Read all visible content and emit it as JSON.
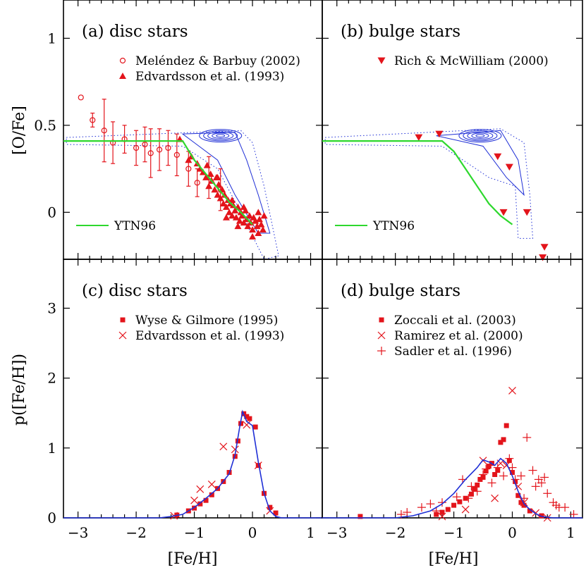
{
  "colors": {
    "data": "#e3141b",
    "contour": "#1f2fd6",
    "model": "#2ed82e",
    "axis": "#000000"
  },
  "axes": {
    "xlabel": "[Fe/H]",
    "top_ylabel": "[O/Fe]",
    "bottom_ylabel": "p([Fe/H])",
    "x_ticks": [
      "−3",
      "−2",
      "−1",
      "0",
      "1"
    ],
    "top_y_ticks": [
      "1",
      "0.5",
      "0"
    ],
    "bottom_y_ticks": [
      "3",
      "2",
      "1",
      "0"
    ]
  },
  "chart_data": [
    {
      "id": "a",
      "type": "scatter",
      "title": "(a) disc stars",
      "xlim": [
        -3.25,
        1.2
      ],
      "ylim": [
        -0.27,
        1.22
      ],
      "series": [
        {
          "name": "Meléndez & Barbuy (2002)",
          "marker": "open-circle",
          "points": [
            [
              -2.95,
              0.66
            ],
            [
              -2.75,
              0.53
            ],
            [
              -2.55,
              0.47
            ],
            [
              -2.4,
              0.4
            ],
            [
              -2.2,
              0.42
            ],
            [
              -2.0,
              0.37
            ],
            [
              -1.85,
              0.39
            ],
            [
              -1.75,
              0.34
            ],
            [
              -1.6,
              0.36
            ],
            [
              -1.45,
              0.37
            ],
            [
              -1.3,
              0.33
            ],
            [
              -1.1,
              0.25
            ],
            [
              -0.95,
              0.17
            ],
            [
              -0.75,
              0.2
            ],
            [
              -0.55,
              0.13
            ]
          ],
          "errors": [
            0.0,
            0.04,
            0.18,
            0.12,
            0.08,
            0.1,
            0.1,
            0.14,
            0.12,
            0.1,
            0.12,
            0.1,
            0.08,
            0.12,
            0.12
          ]
        },
        {
          "name": "Edvardsson et al. (1993)",
          "marker": "filled-triangle",
          "points": [
            [
              -1.25,
              0.42
            ],
            [
              -1.1,
              0.3
            ],
            [
              -1.05,
              0.32
            ],
            [
              -0.95,
              0.28
            ],
            [
              -0.9,
              0.25
            ],
            [
              -0.85,
              0.23
            ],
            [
              -0.8,
              0.2
            ],
            [
              -0.78,
              0.27
            ],
            [
              -0.75,
              0.15
            ],
            [
              -0.72,
              0.22
            ],
            [
              -0.7,
              0.18
            ],
            [
              -0.65,
              0.13
            ],
            [
              -0.62,
              0.2
            ],
            [
              -0.6,
              0.1
            ],
            [
              -0.58,
              0.16
            ],
            [
              -0.55,
              0.08
            ],
            [
              -0.52,
              0.13
            ],
            [
              -0.5,
              0.05
            ],
            [
              -0.48,
              0.1
            ],
            [
              -0.45,
              0.03
            ],
            [
              -0.42,
              0.07
            ],
            [
              -0.4,
              0.0
            ],
            [
              -0.38,
              0.05
            ],
            [
              -0.35,
              -0.02
            ],
            [
              -0.33,
              0.04
            ],
            [
              -0.3,
              0.01
            ],
            [
              -0.28,
              -0.03
            ],
            [
              -0.25,
              0.03
            ],
            [
              -0.22,
              -0.05
            ],
            [
              -0.2,
              0.0
            ],
            [
              -0.18,
              -0.02
            ],
            [
              -0.15,
              -0.06
            ],
            [
              -0.12,
              0.01
            ],
            [
              -0.1,
              -0.04
            ],
            [
              -0.08,
              -0.08
            ],
            [
              -0.05,
              -0.02
            ],
            [
              -0.03,
              -0.06
            ],
            [
              0.0,
              -0.1
            ],
            [
              0.02,
              -0.03
            ],
            [
              0.05,
              -0.05
            ],
            [
              0.08,
              -0.08
            ],
            [
              0.1,
              -0.12
            ],
            [
              0.12,
              -0.04
            ],
            [
              0.15,
              -0.07
            ],
            [
              0.18,
              -0.1
            ],
            [
              0.2,
              -0.02
            ],
            [
              -0.6,
              0.2
            ],
            [
              -0.35,
              0.07
            ],
            [
              -0.15,
              0.03
            ],
            [
              0.1,
              -0.0
            ],
            [
              0.0,
              -0.14
            ],
            [
              -0.45,
              -0.03
            ],
            [
              -0.25,
              -0.08
            ]
          ]
        },
        {
          "name": "YTN96",
          "marker": "line",
          "points": [
            [
              -3.25,
              0.41
            ],
            [
              -1.2,
              0.41
            ],
            [
              -1.0,
              0.3
            ],
            [
              -0.7,
              0.18
            ],
            [
              -0.4,
              0.06
            ],
            [
              -0.2,
              0.0
            ],
            [
              0.0,
              -0.07
            ]
          ]
        }
      ]
    },
    {
      "id": "b",
      "type": "scatter",
      "title": "(b) bulge stars",
      "xlim": [
        -3.25,
        1.2
      ],
      "ylim": [
        -0.27,
        1.22
      ],
      "series": [
        {
          "name": "Rich & McWilliam (2000)",
          "marker": "filled-down-triangle",
          "points": [
            [
              -1.6,
              0.43
            ],
            [
              -1.25,
              0.45
            ],
            [
              -0.25,
              0.32
            ],
            [
              -0.05,
              0.26
            ],
            [
              -0.15,
              0.0
            ],
            [
              0.25,
              0.0
            ],
            [
              0.55,
              -0.2
            ],
            [
              0.52,
              -0.26
            ]
          ]
        },
        {
          "name": "YTN96",
          "marker": "line",
          "points": [
            [
              -3.25,
              0.41
            ],
            [
              -1.2,
              0.41
            ],
            [
              -1.0,
              0.35
            ],
            [
              -0.8,
              0.25
            ],
            [
              -0.6,
              0.15
            ],
            [
              -0.4,
              0.05
            ],
            [
              -0.2,
              -0.02
            ],
            [
              0.0,
              -0.07
            ]
          ]
        }
      ]
    },
    {
      "id": "c",
      "type": "scatter",
      "title": "(c) disc stars",
      "xlim": [
        -3.25,
        1.2
      ],
      "ylim": [
        0,
        3.7
      ],
      "series": [
        {
          "name": "Wyse & Gilmore (1995)",
          "marker": "filled-square",
          "points": [
            [
              -1.3,
              0.04
            ],
            [
              -1.1,
              0.1
            ],
            [
              -1.0,
              0.14
            ],
            [
              -0.9,
              0.2
            ],
            [
              -0.8,
              0.25
            ],
            [
              -0.7,
              0.33
            ],
            [
              -0.6,
              0.42
            ],
            [
              -0.5,
              0.52
            ],
            [
              -0.4,
              0.65
            ],
            [
              -0.3,
              0.88
            ],
            [
              -0.25,
              1.1
            ],
            [
              -0.2,
              1.35
            ],
            [
              -0.15,
              1.49
            ],
            [
              -0.1,
              1.45
            ],
            [
              -0.05,
              1.42
            ],
            [
              0.05,
              1.3
            ],
            [
              0.1,
              0.75
            ],
            [
              0.2,
              0.35
            ],
            [
              0.3,
              0.15
            ],
            [
              0.4,
              0.07
            ]
          ]
        },
        {
          "name": "Edvardsson et al. (1993)",
          "marker": "x",
          "points": [
            [
              -1.35,
              0.03
            ],
            [
              -1.0,
              0.25
            ],
            [
              -0.9,
              0.41
            ],
            [
              -0.7,
              0.48
            ],
            [
              -0.5,
              1.02
            ],
            [
              -0.3,
              0.98
            ],
            [
              -0.1,
              1.33
            ],
            [
              0.1,
              0.75
            ],
            [
              0.3,
              0.1
            ]
          ]
        },
        {
          "name": "",
          "marker": "line",
          "points": [
            [
              -3.25,
              0.0
            ],
            [
              -1.6,
              0.0
            ],
            [
              -1.4,
              0.02
            ],
            [
              -1.2,
              0.05
            ],
            [
              -1.0,
              0.15
            ],
            [
              -0.8,
              0.28
            ],
            [
              -0.6,
              0.42
            ],
            [
              -0.4,
              0.63
            ],
            [
              -0.3,
              0.9
            ],
            [
              -0.22,
              1.3
            ],
            [
              -0.17,
              1.52
            ],
            [
              -0.1,
              1.38
            ],
            [
              0.0,
              1.32
            ],
            [
              0.1,
              0.8
            ],
            [
              0.2,
              0.35
            ],
            [
              0.3,
              0.1
            ],
            [
              0.4,
              0.02
            ],
            [
              0.5,
              0.0
            ],
            [
              1.2,
              0.0
            ]
          ]
        }
      ]
    },
    {
      "id": "d",
      "type": "scatter",
      "title": "(d) bulge stars",
      "xlim": [
        -3.25,
        1.2
      ],
      "ylim": [
        0,
        3.7
      ],
      "series": [
        {
          "name": "Zoccali et al. (2003)",
          "marker": "filled-square",
          "points": [
            [
              -2.6,
              0.02
            ],
            [
              -1.3,
              0.05
            ],
            [
              -1.2,
              0.08
            ],
            [
              -1.1,
              0.12
            ],
            [
              -1.0,
              0.18
            ],
            [
              -0.9,
              0.23
            ],
            [
              -0.8,
              0.28
            ],
            [
              -0.7,
              0.34
            ],
            [
              -0.65,
              0.41
            ],
            [
              -0.6,
              0.47
            ],
            [
              -0.55,
              0.55
            ],
            [
              -0.5,
              0.58
            ],
            [
              -0.45,
              0.67
            ],
            [
              -0.4,
              0.74
            ],
            [
              -0.35,
              0.78
            ],
            [
              -0.3,
              0.62
            ],
            [
              -0.25,
              0.68
            ],
            [
              -0.2,
              1.08
            ],
            [
              -0.15,
              1.12
            ],
            [
              -0.1,
              1.32
            ],
            [
              -0.05,
              0.82
            ],
            [
              0.0,
              0.65
            ],
            [
              0.05,
              0.52
            ],
            [
              0.1,
              0.32
            ],
            [
              0.15,
              0.22
            ],
            [
              0.2,
              0.18
            ],
            [
              0.3,
              0.1
            ],
            [
              0.5,
              0.03
            ]
          ]
        },
        {
          "name": "Ramirez et al. (2000)",
          "marker": "x",
          "points": [
            [
              -1.2,
              0.02
            ],
            [
              -0.8,
              0.12
            ],
            [
              -0.5,
              0.82
            ],
            [
              -0.3,
              0.28
            ],
            [
              -0.2,
              0.78
            ],
            [
              -0.1,
              0.75
            ],
            [
              0.0,
              1.82
            ],
            [
              0.1,
              0.45
            ],
            [
              0.2,
              0.22
            ],
            [
              0.4,
              0.07
            ],
            [
              0.6,
              0.0
            ]
          ]
        },
        {
          "name": "Sadler et al. (1996)",
          "marker": "plus",
          "points": [
            [
              -1.9,
              0.05
            ],
            [
              -1.8,
              0.08
            ],
            [
              -1.55,
              0.15
            ],
            [
              -1.4,
              0.2
            ],
            [
              -1.3,
              0.1
            ],
            [
              -1.2,
              0.22
            ],
            [
              -0.95,
              0.3
            ],
            [
              -0.85,
              0.55
            ],
            [
              -0.75,
              0.28
            ],
            [
              -0.7,
              0.45
            ],
            [
              -0.6,
              0.38
            ],
            [
              -0.5,
              0.62
            ],
            [
              -0.45,
              0.7
            ],
            [
              -0.35,
              0.5
            ],
            [
              -0.25,
              0.72
            ],
            [
              -0.15,
              0.6
            ],
            [
              -0.05,
              0.85
            ],
            [
              0.0,
              0.72
            ],
            [
              0.05,
              0.55
            ],
            [
              0.15,
              0.6
            ],
            [
              0.2,
              0.28
            ],
            [
              0.25,
              1.15
            ],
            [
              0.35,
              0.68
            ],
            [
              0.4,
              0.45
            ],
            [
              0.45,
              0.55
            ],
            [
              0.5,
              0.5
            ],
            [
              0.55,
              0.58
            ],
            [
              0.6,
              0.35
            ],
            [
              0.7,
              0.22
            ],
            [
              0.75,
              0.18
            ],
            [
              0.8,
              0.15
            ],
            [
              0.9,
              0.15
            ],
            [
              1.05,
              0.05
            ]
          ]
        },
        {
          "name": "",
          "marker": "line",
          "points": [
            [
              -3.25,
              0.0
            ],
            [
              -2.0,
              0.0
            ],
            [
              -1.7,
              0.03
            ],
            [
              -1.4,
              0.1
            ],
            [
              -1.2,
              0.2
            ],
            [
              -1.0,
              0.35
            ],
            [
              -0.8,
              0.55
            ],
            [
              -0.6,
              0.72
            ],
            [
              -0.5,
              0.83
            ],
            [
              -0.4,
              0.8
            ],
            [
              -0.3,
              0.75
            ],
            [
              -0.2,
              0.85
            ],
            [
              -0.1,
              0.78
            ],
            [
              0.0,
              0.6
            ],
            [
              0.1,
              0.38
            ],
            [
              0.2,
              0.2
            ],
            [
              0.3,
              0.12
            ],
            [
              0.4,
              0.06
            ],
            [
              0.5,
              0.02
            ],
            [
              0.7,
              0.0
            ],
            [
              1.2,
              0.0
            ]
          ]
        }
      ]
    }
  ]
}
